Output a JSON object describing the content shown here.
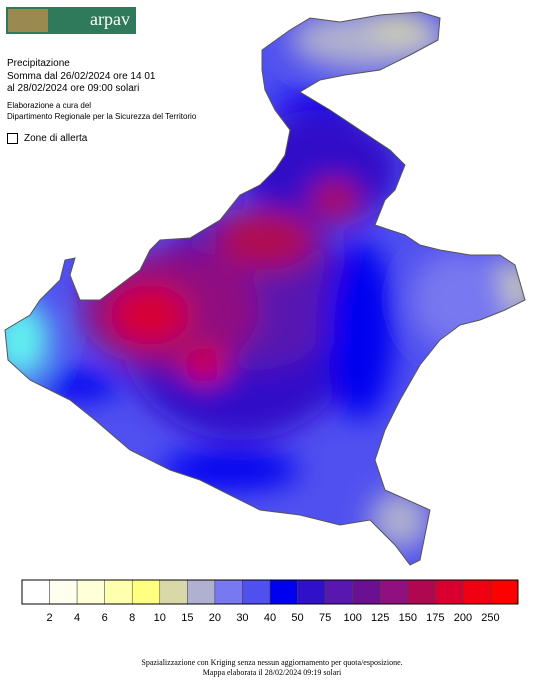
{
  "header": {
    "logo": "arpav",
    "title": "Precipitazione",
    "period_from": "Somma dal 26/02/2024 ore 14 01",
    "period_to": "al 28/02/2024 ore 09:00 solari",
    "credit_line1": "Elaborazione a cura del",
    "credit_line2": "Dipartimento Regionale per la Sicurezza del Territorio",
    "toggle_label": "Zone di allerta"
  },
  "legend": {
    "colors": [
      "#ffffff",
      "#fffff0",
      "#ffffd8",
      "#ffffb0",
      "#ffff80",
      "#d8d8a8",
      "#b0b0d0",
      "#7878f0",
      "#5050f0",
      "#0000f0",
      "#3010c8",
      "#5818b0",
      "#6a1090",
      "#901080",
      "#b00850",
      "#d80030",
      "#f00010",
      "#ff0000"
    ],
    "labels": [
      2,
      4,
      6,
      8,
      10,
      15,
      20,
      30,
      40,
      50,
      75,
      100,
      125,
      150,
      175,
      200,
      250
    ]
  },
  "footer": {
    "line1": "Spazializzazione con Kriging senza nessun aggiornamento per quota/esposizione.",
    "line2": "Mappa elaborata il 28/02/2024 09:19 solari"
  }
}
